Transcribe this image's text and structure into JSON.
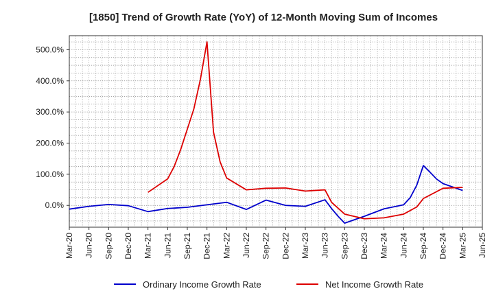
{
  "chart_data": {
    "type": "line",
    "title": "[1850]  Trend of Growth Rate (YoY) of 12-Month Moving Sum of Incomes",
    "xlabel": "",
    "ylabel": "",
    "x_tick_labels": [
      "Mar-20",
      "Jun-20",
      "Sep-20",
      "Dec-20",
      "Mar-21",
      "Jun-21",
      "Sep-21",
      "Dec-21",
      "Mar-22",
      "Jun-22",
      "Sep-22",
      "Dec-22",
      "Mar-23",
      "Jun-23",
      "Sep-23",
      "Dec-23",
      "Mar-24",
      "Jun-24",
      "Sep-24",
      "Dec-24",
      "Mar-25",
      "Jun-25"
    ],
    "y_tick_labels": [
      "0.0%",
      "100.0%",
      "200.0%",
      "300.0%",
      "400.0%",
      "500.0%"
    ],
    "y_ticks": [
      0,
      100,
      200,
      300,
      400,
      500
    ],
    "ylim": [
      -70,
      545
    ],
    "grid": true,
    "legend_position": "bottom",
    "series": [
      {
        "name": "Ordinary Income Growth Rate",
        "color": "#0000cc",
        "points": [
          [
            "Mar-20",
            -12
          ],
          [
            "Jun-20",
            -3
          ],
          [
            "Sep-20",
            3
          ],
          [
            "Dec-20",
            -1
          ],
          [
            "Mar-21",
            -20
          ],
          [
            "Jun-21",
            -10
          ],
          [
            "Sep-21",
            -6
          ],
          [
            "Dec-21",
            2
          ],
          [
            "Mar-22",
            10
          ],
          [
            "Jun-22",
            -13
          ],
          [
            "Sep-22",
            17
          ],
          [
            "Dec-22",
            0
          ],
          [
            "Mar-23",
            -3
          ],
          [
            "Jun-23",
            18
          ],
          [
            "Jul-23",
            -10
          ],
          [
            "Aug-23",
            -35
          ],
          [
            "Sep-23",
            -57
          ],
          [
            "Dec-23",
            -35
          ],
          [
            "Mar-24",
            -11
          ],
          [
            "Jun-24",
            2
          ],
          [
            "Jul-24",
            25
          ],
          [
            "Aug-24",
            65
          ],
          [
            "Sep-24",
            128
          ],
          [
            "Oct-24",
            107
          ],
          [
            "Nov-24",
            85
          ],
          [
            "Dec-24",
            70
          ],
          [
            "Mar-25",
            48
          ]
        ]
      },
      {
        "name": "Net Income Growth Rate",
        "color": "#dd0000",
        "points": [
          [
            "Mar-21",
            42
          ],
          [
            "Jun-21",
            85
          ],
          [
            "Jul-21",
            125
          ],
          [
            "Aug-21",
            180
          ],
          [
            "Sep-21",
            245
          ],
          [
            "Oct-21",
            310
          ],
          [
            "Nov-21",
            405
          ],
          [
            "Dec-21",
            525
          ],
          [
            "Jan-22",
            235
          ],
          [
            "Feb-22",
            140
          ],
          [
            "Mar-22",
            88
          ],
          [
            "Jun-22",
            50
          ],
          [
            "Sep-22",
            55
          ],
          [
            "Dec-22",
            56
          ],
          [
            "Mar-23",
            46
          ],
          [
            "Jun-23",
            50
          ],
          [
            "Jul-23",
            10
          ],
          [
            "Sep-23",
            -28
          ],
          [
            "Dec-23",
            -43
          ],
          [
            "Mar-24",
            -40
          ],
          [
            "Jun-24",
            -28
          ],
          [
            "Aug-24",
            -5
          ],
          [
            "Sep-24",
            22
          ],
          [
            "Dec-24",
            55
          ],
          [
            "Mar-25",
            58
          ]
        ]
      }
    ]
  }
}
